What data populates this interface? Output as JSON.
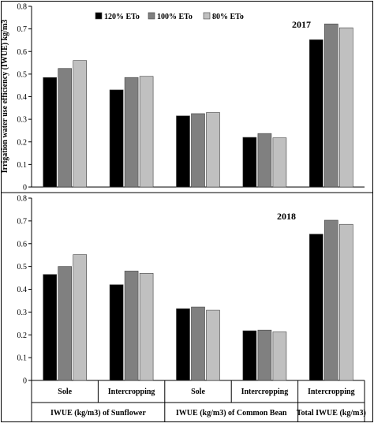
{
  "chart_data": [
    {
      "type": "bar",
      "title": "2017",
      "ylabel": "Irrigation water use efficiency (IWUE) kg/m3",
      "ylim": [
        0,
        0.8
      ],
      "yticks": [
        "0",
        "0.1",
        "0.2",
        "0.3",
        "0.4",
        "0.5",
        "0.6",
        "0.7",
        "0.8"
      ],
      "grid": false,
      "legend_position": "top-left",
      "categories": [
        "Sole",
        "Intercropping",
        "Sole",
        "Intercropping",
        "Intercropping"
      ],
      "series": [
        {
          "name": "120% ETo",
          "color": "#000000",
          "values": [
            0.485,
            0.43,
            0.315,
            0.22,
            0.652
          ]
        },
        {
          "name": "100% ETo",
          "color": "#808080",
          "values": [
            0.525,
            0.485,
            0.325,
            0.237,
            0.722
          ]
        },
        {
          "name": "80% ETo",
          "color": "#c0c0c0",
          "values": [
            0.56,
            0.49,
            0.33,
            0.218,
            0.705
          ]
        }
      ]
    },
    {
      "type": "bar",
      "title": "2018",
      "ylabel": "",
      "ylim": [
        0,
        0.8
      ],
      "yticks": [
        "0",
        "0.1",
        "0.2",
        "0.3",
        "0.4",
        "0.5",
        "0.6",
        "0.7",
        "0.8"
      ],
      "grid": false,
      "categories": [
        "Sole",
        "Intercropping",
        "Sole",
        "Intercropping",
        "Intercropping"
      ],
      "series": [
        {
          "name": "120% ETo",
          "color": "#000000",
          "values": [
            0.465,
            0.42,
            0.315,
            0.218,
            0.642
          ]
        },
        {
          "name": "100% ETo",
          "color": "#808080",
          "values": [
            0.5,
            0.48,
            0.322,
            0.221,
            0.703
          ]
        },
        {
          "name": "80% ETo",
          "color": "#c0c0c0",
          "values": [
            0.552,
            0.47,
            0.308,
            0.213,
            0.685
          ]
        }
      ]
    }
  ],
  "x_groups": [
    "IWUE (kg/m3) of Sunflower",
    "IWUE (kg/m3) of Common Bean",
    "Total IWUE (kg/m3)"
  ],
  "legend": [
    "120% ETo",
    "100% ETo",
    "80% ETo"
  ]
}
